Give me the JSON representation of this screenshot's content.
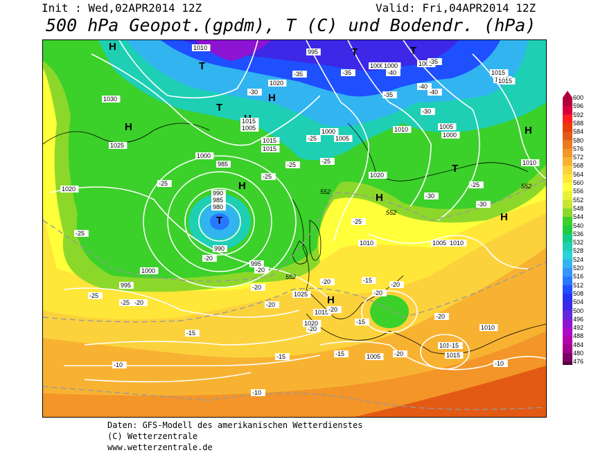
{
  "header": {
    "init": "Init : Wed,02APR2014 12Z",
    "valid": "Valid: Fri,04APR2014 12Z",
    "title": "500 hPa Geopot.(gpdm), T (C) und Bodendr. (hPa)"
  },
  "legend": {
    "values": [
      "600",
      "596",
      "592",
      "588",
      "584",
      "580",
      "576",
      "572",
      "568",
      "564",
      "560",
      "556",
      "552",
      "548",
      "544",
      "540",
      "536",
      "532",
      "528",
      "524",
      "520",
      "516",
      "512",
      "508",
      "504",
      "500",
      "496",
      "492",
      "488",
      "484",
      "480",
      "476"
    ],
    "colors": [
      "#b0003c",
      "#d8003c",
      "#ff1e1e",
      "#e83c00",
      "#e35a14",
      "#ec7a1e",
      "#f39528",
      "#f8b232",
      "#fcd23c",
      "#ffe639",
      "#ffff3a",
      "#e6f233",
      "#c8e52f",
      "#8cd82a",
      "#3cd02a",
      "#1ecc3c",
      "#14cc82",
      "#1ecfb4",
      "#2ad2dc",
      "#32b4f0",
      "#3296fa",
      "#2878ff",
      "#1e50ff",
      "#2832f0",
      "#3c28e6",
      "#6428dc",
      "#8c14d2",
      "#aa0ac8",
      "#b400aa",
      "#a0008c",
      "#7c0064",
      "#5a003c"
    ]
  },
  "map_labels": {
    "pressure_centers": [
      {
        "text": "T"
      },
      {
        "text": "T"
      },
      {
        "text": "T"
      },
      {
        "text": "T"
      },
      {
        "text": "T"
      },
      {
        "text": "T"
      },
      {
        "text": "H"
      },
      {
        "text": "H"
      },
      {
        "text": "H"
      },
      {
        "text": "H"
      },
      {
        "text": "H"
      },
      {
        "text": "H"
      },
      {
        "text": "H"
      },
      {
        "text": "H"
      },
      {
        "text": "H"
      }
    ],
    "isobars": [
      "1010",
      "995",
      "1000",
      "1020",
      "1030",
      "1015",
      "1025",
      "1000",
      "985",
      "1020",
      "990",
      "985",
      "980",
      "990",
      "995",
      "1000",
      "995",
      "1000",
      "1005",
      "1010",
      "1015",
      "1020",
      "1015",
      "1010",
      "1005",
      "1010",
      "1010",
      "1015",
      "1015",
      "1005",
      "1000",
      "1010",
      "1010",
      "1015",
      "1020",
      "1025",
      "1005",
      "1000",
      "1015",
      "1005",
      "1005",
      "1015",
      "1010"
    ],
    "isotherms": [
      "-35",
      "-35",
      "-40",
      "-30",
      "-35",
      "-35",
      "-40",
      "-25",
      "-25",
      "-25",
      "-25",
      "-25",
      "-30",
      "-30",
      "-25",
      "-25",
      "-25",
      "-20",
      "-20",
      "-25",
      "-20",
      "-20",
      "-20",
      "-20",
      "-15",
      "-15",
      "-15",
      "-15",
      "-10",
      "-10",
      "-20",
      "-20",
      "-20",
      "-15",
      "-20",
      "-40",
      "-30",
      "-25",
      "-20",
      "-15",
      "-10",
      "-20"
    ],
    "geopot": [
      "552",
      "552",
      "552",
      "552"
    ]
  },
  "footer": {
    "line1": "Daten: GFS-Modell des amerikanischen Wetterdienstes",
    "line2": "(C) Wetterzentrale",
    "line3": "www.wetterzentrale.de"
  }
}
